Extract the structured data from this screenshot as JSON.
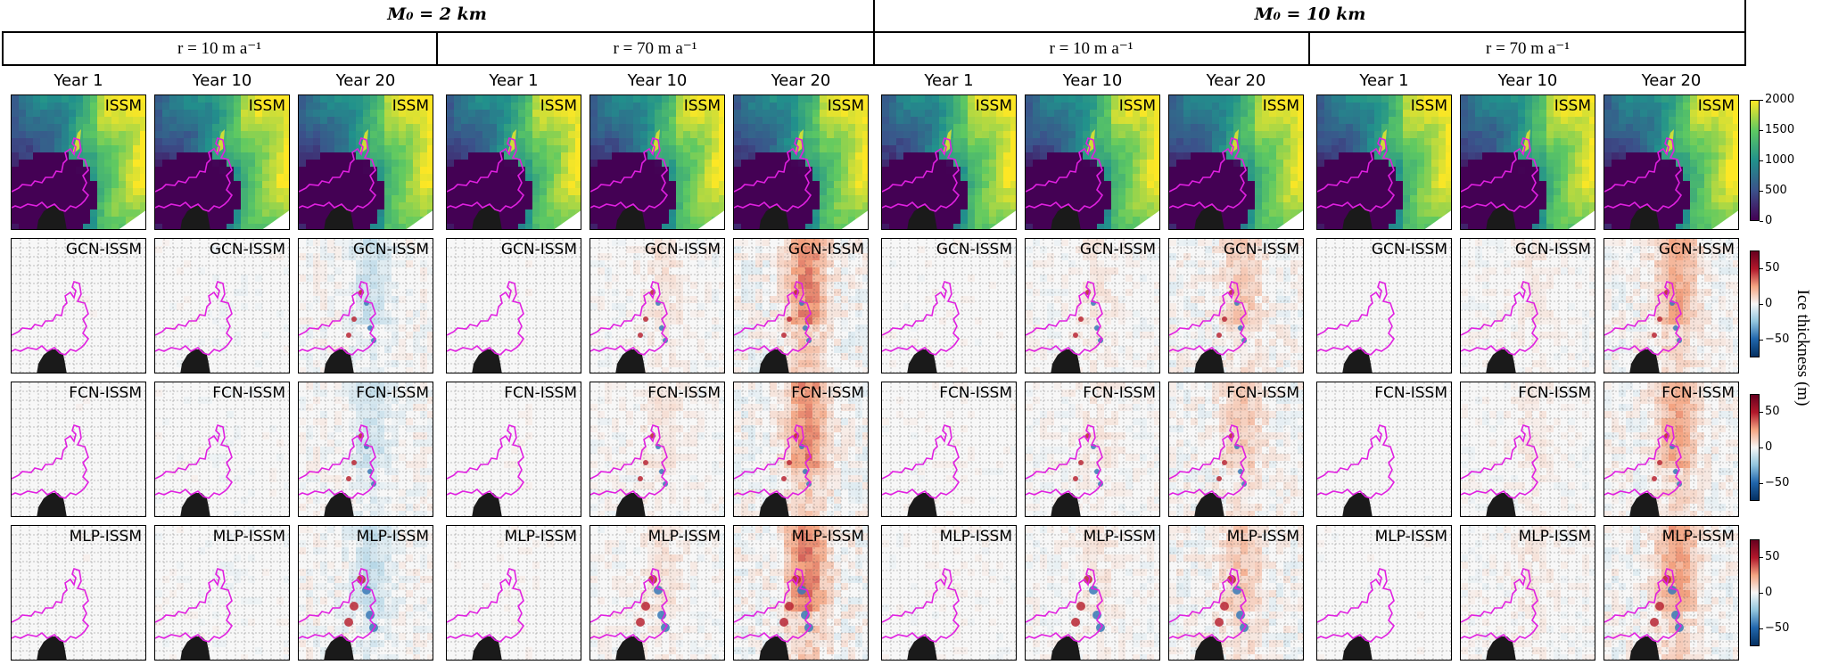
{
  "group_headers": [
    {
      "label": "M₀ = 2 km"
    },
    {
      "label": "M₀ = 10 km"
    }
  ],
  "rate_headers": [
    {
      "label": "r = 10 m a⁻¹"
    },
    {
      "label": "r = 70 m a⁻¹"
    },
    {
      "label": "r = 10 m a⁻¹"
    },
    {
      "label": "r = 70 m a⁻¹"
    }
  ],
  "column_titles": [
    "Year 1",
    "Year 10",
    "Year 20",
    "Year 1",
    "Year 10",
    "Year 20",
    "Year 1",
    "Year 10",
    "Year 20",
    "Year 1",
    "Year 10",
    "Year 20"
  ],
  "row_labels": [
    "ISSM",
    "GCN-ISSM",
    "FCN-ISSM",
    "MLP-ISSM"
  ],
  "colorbars": [
    {
      "ticks": [
        "2000",
        "1500",
        "1000",
        "500",
        "0"
      ],
      "colormap": "viridis",
      "range": [
        0,
        2000
      ]
    },
    {
      "ticks": [
        "50",
        "0",
        "−50"
      ],
      "colormap": "RdBu_r",
      "range": [
        -75,
        75
      ]
    },
    {
      "ticks": [
        "50",
        "0",
        "−50"
      ],
      "colormap": "RdBu_r",
      "range": [
        -75,
        75
      ]
    },
    {
      "ticks": [
        "50",
        "0",
        "−50"
      ],
      "colormap": "RdBu_r",
      "range": [
        -75,
        75
      ]
    }
  ],
  "colorbar_label": "Ice thickness (m)",
  "chart_data": {
    "type": "heatmap",
    "title": "",
    "groups": [
      "M₀ = 2 km",
      "M₀ = 10 km"
    ],
    "melt_rates": [
      "r = 10 m a⁻¹",
      "r = 70 m a⁻¹"
    ],
    "years": [
      "Year 1",
      "Year 10",
      "Year 20"
    ],
    "rows": [
      "ISSM",
      "GCN-ISSM",
      "FCN-ISSM",
      "MLP-ISSM"
    ],
    "ice_thickness_range_m": [
      0,
      2000
    ],
    "difference_range_m": [
      -75,
      75
    ],
    "colorbar_label": "Ice thickness (m)",
    "grid": true
  }
}
